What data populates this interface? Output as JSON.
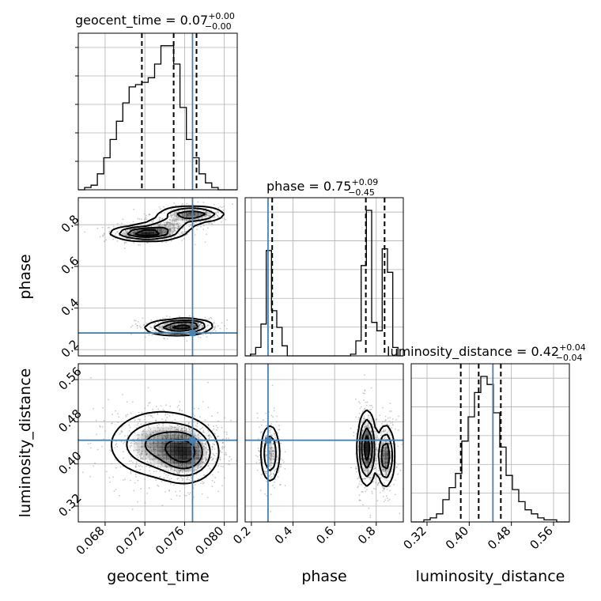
{
  "colors": {
    "truth": "#4682b4",
    "density": "#000000"
  },
  "titles": {
    "geocent_time": {
      "name": "geocent_time",
      "value": "0.07",
      "plus": "+0.00",
      "minus": "−0.00"
    },
    "phase": {
      "name": "phase",
      "value": "0.75",
      "plus": "+0.09",
      "minus": "−0.45"
    },
    "luminosity_distance": {
      "name": "luminosity_distance",
      "value": "0.42",
      "plus": "+0.04",
      "minus": "−0.04"
    }
  },
  "axis_labels": {
    "x": [
      "geocent_time",
      "phase",
      "luminosity_distance"
    ],
    "y": [
      "phase",
      "luminosity_distance"
    ]
  },
  "chart_data": {
    "type": "corner",
    "parameters": [
      "geocent_time",
      "phase",
      "luminosity_distance"
    ],
    "ranges": {
      "geocent_time": [
        0.0653,
        0.0813
      ],
      "phase": [
        0.17,
        0.93
      ],
      "luminosity_distance": [
        0.29,
        0.59
      ]
    },
    "ticks": {
      "geocent_time": [
        "0.068",
        "0.072",
        "0.076",
        "0.080"
      ],
      "phase": [
        "0.2",
        "0.4",
        "0.6",
        "0.8"
      ],
      "luminosity_distance": [
        "0.32",
        "0.40",
        "0.48",
        "0.56"
      ]
    },
    "truths": {
      "geocent_time": 0.0768,
      "phase": 0.28,
      "luminosity_distance": 0.445
    },
    "quantiles": {
      "geocent_time": [
        0.0717,
        0.0749,
        0.0772
      ],
      "phase": [
        0.3,
        0.75,
        0.84
      ],
      "luminosity_distance": [
        0.384,
        0.418,
        0.46
      ]
    },
    "histograms": {
      "geocent_time": {
        "edges_range": [
          0.0653,
          0.0813
        ],
        "counts": [
          0,
          1,
          2,
          7,
          14,
          22,
          30,
          38,
          45,
          46,
          47,
          49,
          55,
          63,
          63,
          55,
          36,
          22,
          14,
          7,
          3,
          1,
          0,
          0,
          0
        ]
      },
      "phase": {
        "edges_range": [
          0.17,
          0.93
        ],
        "counts": [
          0,
          1,
          5,
          19,
          63,
          27,
          17,
          6,
          0,
          0,
          0,
          0,
          0,
          0,
          0,
          0,
          0,
          0,
          0,
          0,
          1,
          9,
          54,
          87,
          20,
          15,
          64,
          50,
          5,
          0
        ]
      },
      "luminosity_distance": {
        "edges_range": [
          0.29,
          0.59
        ],
        "counts": [
          0,
          0,
          1,
          2,
          4,
          11,
          17,
          24,
          40,
          52,
          64,
          72,
          68,
          54,
          37,
          23,
          16,
          10,
          6,
          4,
          2,
          1,
          1,
          0,
          0
        ]
      }
    },
    "blobs_2d": {
      "geocent_time__phase": [
        {
          "x": 0.0722,
          "y": 0.76,
          "sx": 0.0018,
          "sy": 0.018,
          "w": 1.0
        },
        {
          "x": 0.0767,
          "y": 0.85,
          "sx": 0.0017,
          "sy": 0.02,
          "w": 0.75
        },
        {
          "x": 0.0745,
          "y": 0.8,
          "sx": 0.0015,
          "sy": 0.02,
          "w": 0.4
        },
        {
          "x": 0.0752,
          "y": 0.305,
          "sx": 0.0017,
          "sy": 0.02,
          "w": 0.7
        },
        {
          "x": 0.0765,
          "y": 0.32,
          "sx": 0.0012,
          "sy": 0.015,
          "w": 0.4
        }
      ],
      "geocent_time__luminosity_distance": [
        {
          "x": 0.0762,
          "y": 0.42,
          "sx": 0.0016,
          "sy": 0.028,
          "w": 1.0
        },
        {
          "x": 0.0738,
          "y": 0.44,
          "sx": 0.0024,
          "sy": 0.035,
          "w": 0.55
        },
        {
          "x": 0.0718,
          "y": 0.435,
          "sx": 0.0022,
          "sy": 0.03,
          "w": 0.3
        }
      ],
      "phase__luminosity_distance": [
        {
          "x": 0.29,
          "y": 0.42,
          "sx": 0.025,
          "sy": 0.03,
          "w": 0.55
        },
        {
          "x": 0.755,
          "y": 0.43,
          "sx": 0.022,
          "sy": 0.035,
          "w": 1.0
        },
        {
          "x": 0.845,
          "y": 0.415,
          "sx": 0.022,
          "sy": 0.03,
          "w": 0.8
        }
      ]
    }
  }
}
